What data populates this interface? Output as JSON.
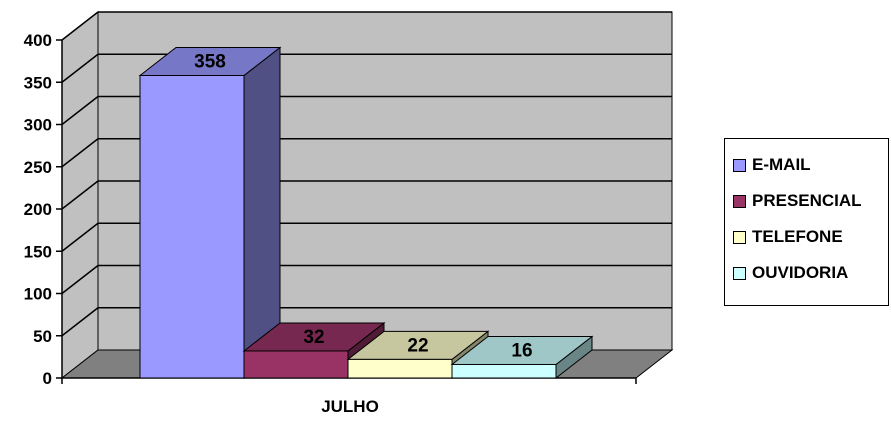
{
  "chart_data": {
    "type": "bar",
    "categories": [
      "JULHO"
    ],
    "series": [
      {
        "name": "E-MAIL",
        "values": [
          358
        ],
        "color": "#9999FF"
      },
      {
        "name": "PRESENCIAL",
        "values": [
          32
        ],
        "color": "#993366"
      },
      {
        "name": "TELEFONE",
        "values": [
          22
        ],
        "color": "#FFFFCC"
      },
      {
        "name": "OUVIDORIA",
        "values": [
          16
        ],
        "color": "#CCFFFF"
      }
    ],
    "title": "",
    "xlabel": "",
    "ylabel": "",
    "ylim": [
      0,
      400
    ],
    "yticks": [
      0,
      50,
      100,
      150,
      200,
      250,
      300,
      350,
      400
    ],
    "data_labels": [
      "358",
      "32",
      "22",
      "16"
    ],
    "grid": true,
    "three_d": true,
    "legend_position": "right",
    "wall_color": "#C0C0C0",
    "floor_color": "#808080"
  }
}
